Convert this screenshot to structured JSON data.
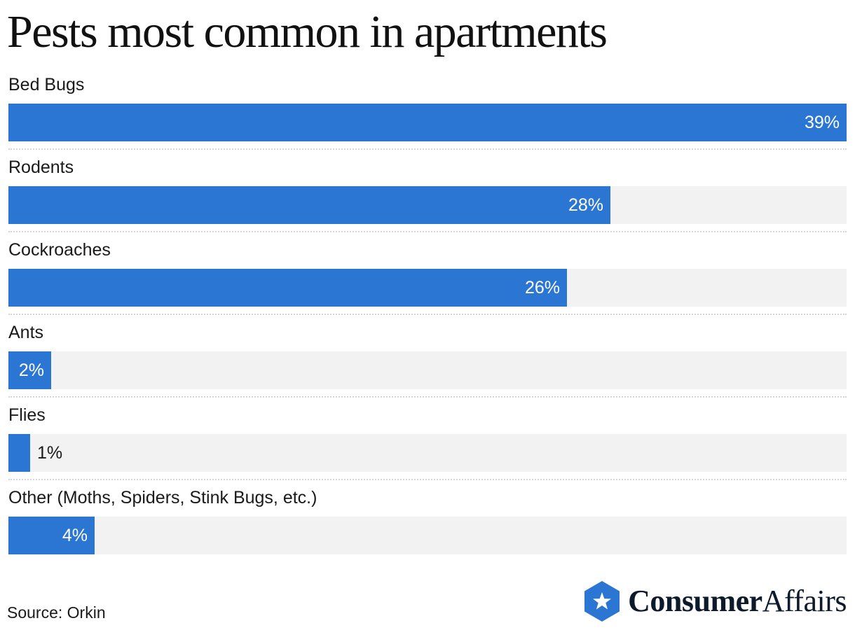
{
  "title": "Pests most common in apartments",
  "source": "Source: Orkin",
  "brand": {
    "part1": "Consumer",
    "part2": "Affairs",
    "icon": "star-hexagon-icon",
    "color": "#2a76d2"
  },
  "colors": {
    "bar": "#2a76d2",
    "track": "#f2f2f2"
  },
  "chart_data": {
    "type": "bar",
    "orientation": "horizontal",
    "title": "Pests most common in apartments",
    "xlabel": "",
    "ylabel": "",
    "xlim": [
      0,
      39
    ],
    "categories": [
      "Bed Bugs",
      "Rodents",
      "Cockroaches",
      "Ants",
      "Flies",
      "Other (Moths, Spiders, Stink Bugs, etc.)"
    ],
    "values": [
      39,
      28,
      26,
      2,
      1,
      4
    ],
    "value_labels": [
      "39%",
      "28%",
      "26%",
      "2%",
      "1%",
      "4%"
    ],
    "grid": false,
    "legend": "none"
  }
}
